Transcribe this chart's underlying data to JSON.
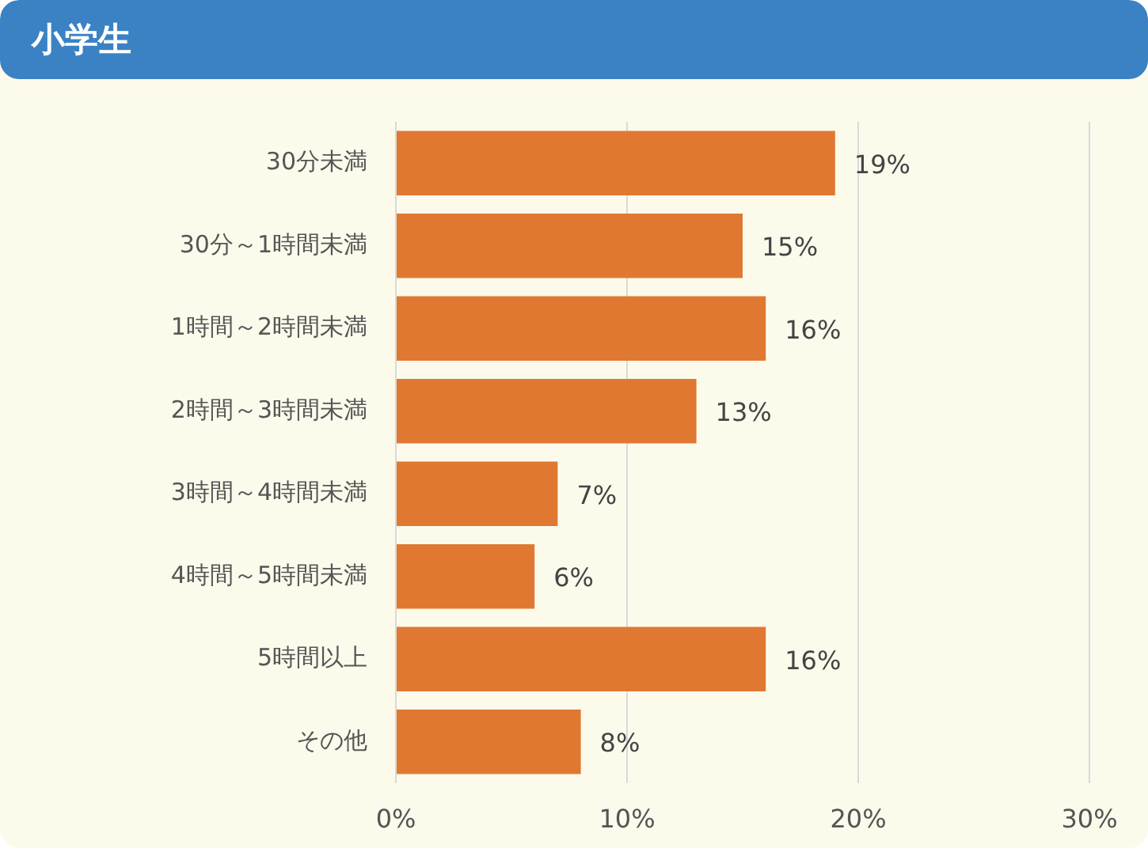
{
  "chart_data": {
    "type": "bar",
    "orientation": "horizontal",
    "title": "小学生",
    "categories": [
      "30分未満",
      "30分～1時間未満",
      "1時間～2時間未満",
      "2時間～3時間未満",
      "3時間～4時間未満",
      "4時間～5時間未満",
      "5時間以上",
      "その他"
    ],
    "values": [
      19,
      15,
      16,
      13,
      7,
      6,
      16,
      8
    ],
    "value_labels": [
      "19%",
      "15%",
      "16%",
      "13%",
      "7%",
      "6%",
      "16%",
      "8%"
    ],
    "color": "#e07832",
    "xlim": [
      0,
      30
    ],
    "xticks": [
      {
        "value": 0,
        "label": "0%"
      },
      {
        "value": 10,
        "label": "10%"
      },
      {
        "value": 20,
        "label": "20%"
      },
      {
        "value": 30,
        "label": "30%"
      }
    ],
    "grid": "x"
  }
}
